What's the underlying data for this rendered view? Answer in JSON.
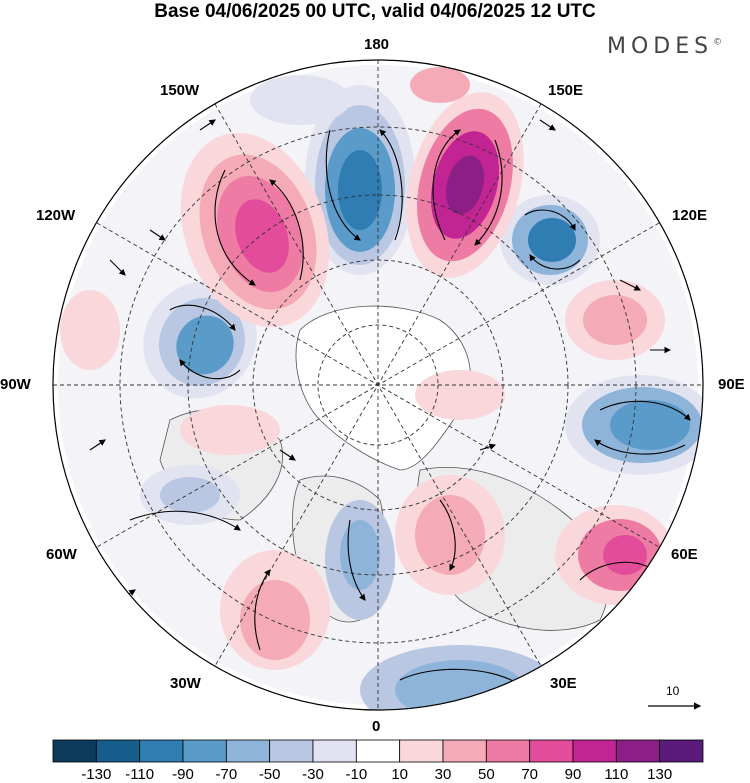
{
  "title": "Base 04/06/2025 00 UTC, valid 04/06/2025 12 UTC",
  "brand": "MODES",
  "brand_mark": "©",
  "longitude_labels": {
    "top": "180",
    "top_left": "150W",
    "top_right": "150E",
    "upper_left": "120W",
    "upper_right": "120E",
    "left": "90W",
    "right": "90E",
    "lower_left": "60W",
    "lower_right": "60E",
    "bottom_left": "30W",
    "bottom_right": "30E",
    "bottom": "0"
  },
  "vector_scale": {
    "label": "10"
  },
  "colorbar": {
    "labels": [
      "-130",
      "-110",
      "-90",
      "-70",
      "-50",
      "-30",
      "-10",
      "10",
      "30",
      "50",
      "70",
      "90",
      "110",
      "130"
    ],
    "colors": [
      "#0d3b5c",
      "#165f8c",
      "#2f7db3",
      "#5a9bc9",
      "#8fb4d9",
      "#b9c7e3",
      "#e2e3f1",
      "#ffffff",
      "#f9d7da",
      "#f4aab7",
      "#ee7ba4",
      "#e24c9a",
      "#c22493",
      "#8c1f86",
      "#5a1b7a"
    ]
  },
  "colors": {
    "land_fill": "#ececec",
    "coast": "#555555",
    "grid": "#333333"
  }
}
